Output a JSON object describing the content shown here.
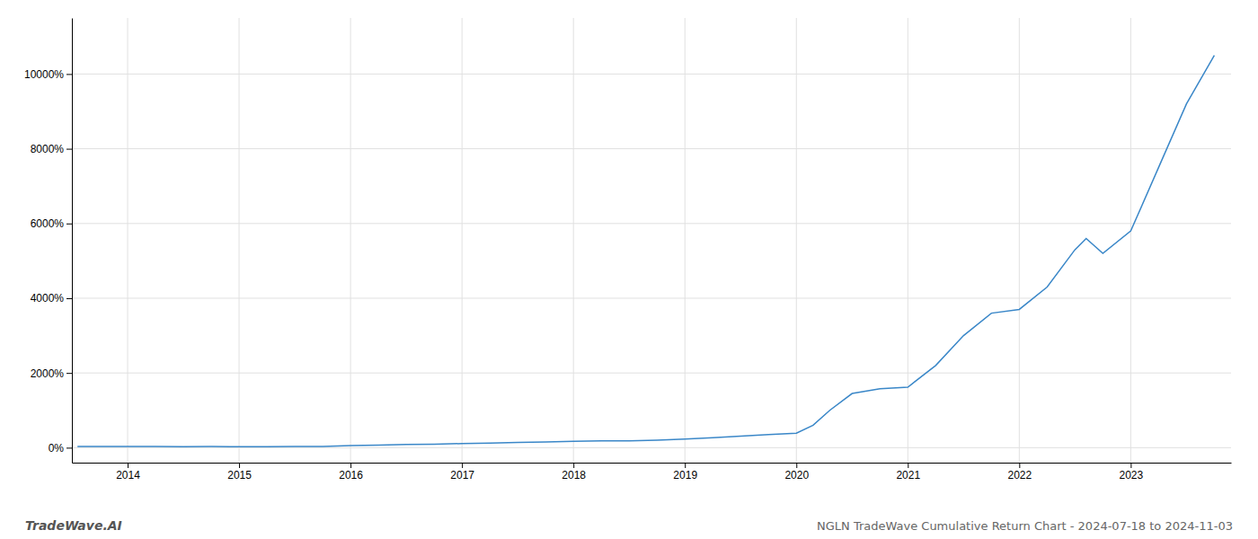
{
  "chart_data": {
    "type": "line",
    "title": "NGLN TradeWave Cumulative Return Chart - 2024-07-18 to 2024-11-03",
    "annotations": [
      "TradeWave.AI"
    ],
    "color": "#3a87c8",
    "grid": true,
    "x": [
      2013.55,
      2013.75,
      2014.0,
      2014.25,
      2014.5,
      2014.75,
      2015.0,
      2015.25,
      2015.5,
      2015.75,
      2016.0,
      2016.25,
      2016.5,
      2016.75,
      2017.0,
      2017.25,
      2017.5,
      2017.75,
      2018.0,
      2018.25,
      2018.5,
      2018.75,
      2019.0,
      2019.25,
      2019.5,
      2019.75,
      2020.0,
      2020.15,
      2020.3,
      2020.5,
      2020.75,
      2021.0,
      2021.25,
      2021.5,
      2021.75,
      2022.0,
      2022.25,
      2022.5,
      2022.6,
      2022.75,
      2023.0,
      2023.25,
      2023.5,
      2023.75
    ],
    "values": [
      30,
      30,
      35,
      30,
      28,
      32,
      28,
      25,
      30,
      35,
      55,
      70,
      85,
      95,
      110,
      120,
      140,
      155,
      170,
      180,
      185,
      200,
      230,
      270,
      310,
      350,
      390,
      600,
      1000,
      1450,
      1580,
      1620,
      2200,
      3000,
      3600,
      3700,
      4300,
      5300,
      5600,
      5200,
      5800,
      7500,
      9200,
      10500
    ],
    "xlim": [
      2013.5,
      2023.9
    ],
    "xticks": [
      2014,
      2015,
      2016,
      2017,
      2018,
      2019,
      2020,
      2021,
      2022,
      2023
    ],
    "ylim": [
      -400,
      11500
    ],
    "yticks": [
      {
        "value": 0,
        "label": "0%"
      },
      {
        "value": 2000,
        "label": "2000%"
      },
      {
        "value": 4000,
        "label": "4000%"
      },
      {
        "value": 6000,
        "label": "6000%"
      },
      {
        "value": 8000,
        "label": "8000%"
      },
      {
        "value": 10000,
        "label": "10000%"
      }
    ]
  }
}
